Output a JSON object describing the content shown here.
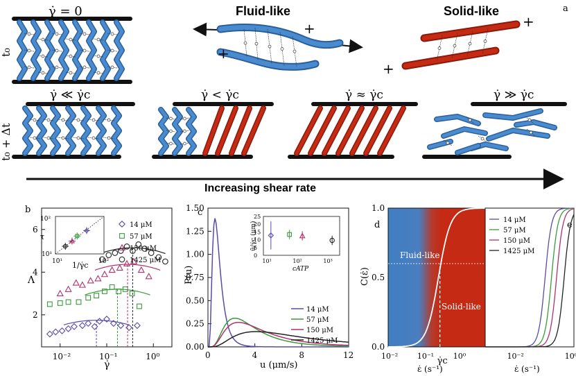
{
  "figure": {
    "label_a": "a",
    "top": {
      "row1_eq": "γ̇ = 0",
      "fluid_title": "Fluid-like",
      "solid_title": "Solid-like",
      "plus": "+",
      "t0": "t₀",
      "t0dt": "t₀ + Δt",
      "conds": [
        "γ̇ ≪ γ̇c",
        "γ̇ < γ̇c",
        "γ̇ ≈ γ̇c",
        "γ̇ ≫ γ̇c"
      ],
      "arrow_label": "Increasing shear rate"
    },
    "colors": {
      "blue": "#3f7fc0",
      "red": "#c42a14",
      "purple": "#5a4aa8",
      "green": "#3a9a3a",
      "magenta": "#b2306e",
      "black": "#222222"
    }
  },
  "chart_data": [
    {
      "id": "b",
      "type": "scatter",
      "panel_label": "b",
      "xlabel": "γ̇",
      "ylabel": "Λ",
      "xscale": "log",
      "xlim": [
        0.004,
        2.5
      ],
      "ylim": [
        0.5,
        7
      ],
      "xticks": [
        "10⁻²",
        "10⁻¹",
        "10⁰"
      ],
      "yticks": [
        "2",
        "4",
        "6"
      ],
      "series": [
        {
          "name": "14 μM",
          "marker": "diamond",
          "color": "#5a4aa8",
          "x": [
            0.006,
            0.008,
            0.011,
            0.015,
            0.02,
            0.03,
            0.04,
            0.055,
            0.07,
            0.1,
            0.14,
            0.2,
            0.3,
            0.45
          ],
          "y": [
            1.1,
            1.2,
            1.25,
            1.35,
            1.45,
            1.5,
            1.6,
            1.45,
            1.7,
            1.8,
            1.6,
            1.5,
            1.4,
            1.5
          ],
          "peak_x": 0.06
        },
        {
          "name": "57 μM",
          "marker": "square",
          "color": "#3a9a3a",
          "x": [
            0.006,
            0.01,
            0.015,
            0.025,
            0.04,
            0.06,
            0.09,
            0.13,
            0.18,
            0.25,
            0.35,
            0.5
          ],
          "y": [
            2.5,
            2.55,
            2.6,
            2.6,
            2.8,
            2.9,
            3.1,
            3.3,
            3.1,
            3.2,
            3.0,
            2.4
          ],
          "peak_x": 0.17
        },
        {
          "name": "150 μM",
          "marker": "triangle",
          "color": "#b2306e",
          "x": [
            0.01,
            0.015,
            0.022,
            0.03,
            0.045,
            0.065,
            0.09,
            0.13,
            0.19,
            0.27,
            0.38,
            0.55,
            0.8
          ],
          "y": [
            3.0,
            3.2,
            3.5,
            3.4,
            3.6,
            3.7,
            3.9,
            4.1,
            4.2,
            4.4,
            4.5,
            4.1,
            3.8
          ],
          "peak_x": 0.28
        },
        {
          "name": "1425 μM",
          "marker": "circle",
          "color": "#222222",
          "x": [
            0.08,
            0.11,
            0.15,
            0.2,
            0.27,
            0.36,
            0.48,
            0.65,
            0.9,
            1.3,
            1.8
          ],
          "y": [
            4.6,
            4.8,
            4.9,
            5.0,
            5.2,
            5.0,
            5.3,
            5.1,
            4.9,
            4.7,
            4.5
          ],
          "peak_x": 0.36
        }
      ],
      "inset": {
        "xlabel": "1/γ̇c",
        "ylabel": "τ",
        "xticks": [
          "10¹",
          "10²"
        ],
        "yticks": [
          "10¹",
          "10²"
        ],
        "points": [
          {
            "x": 16,
            "y": 16,
            "color": "#222222"
          },
          {
            "x": 22,
            "y": 22,
            "color": "#b2306e"
          },
          {
            "x": 28,
            "y": 30,
            "color": "#3a9a3a"
          },
          {
            "x": 44,
            "y": 42,
            "color": "#5a4aa8"
          }
        ]
      }
    },
    {
      "id": "c",
      "type": "line",
      "panel_label": "c",
      "xlabel": "u (μm/s)",
      "ylabel": "P(u)",
      "xlim": [
        0,
        12
      ],
      "ylim": [
        0,
        1.5
      ],
      "xticks": [
        "0",
        "4",
        "8",
        "12"
      ],
      "yticks": [
        "0.00",
        "0.25",
        "0.50",
        "0.75",
        "1.00",
        "1.25",
        "1.50"
      ],
      "series": [
        {
          "name": "14 μM",
          "color": "#5a4aa8",
          "peak_u": 0.6,
          "peak_p": 1.39,
          "width": 0.55
        },
        {
          "name": "57 μM",
          "color": "#3a9a3a",
          "peak_u": 2.3,
          "peak_p": 0.31,
          "width": 1.6
        },
        {
          "name": "150 μM",
          "color": "#b2306e",
          "peak_u": 2.6,
          "peak_p": 0.265,
          "width": 1.9
        },
        {
          "name": "1425 μM",
          "color": "#222222",
          "peak_u": 4.1,
          "peak_p": 0.165,
          "width": 3.0
        }
      ],
      "inset": {
        "xlabel": "cATP",
        "ylabel": "ū/γ̇c (μm)",
        "xticks": [
          "10¹",
          "10²",
          "10³"
        ],
        "yticks": [
          "0",
          "5",
          "10",
          "15",
          "20",
          "25"
        ],
        "points": [
          {
            "x": 14,
            "y": 12.8,
            "err": 9,
            "color": "#5a4aa8",
            "marker": "diamond"
          },
          {
            "x": 57,
            "y": 13.4,
            "err": 3,
            "color": "#3a9a3a",
            "marker": "square"
          },
          {
            "x": 150,
            "y": 12.5,
            "err": 3,
            "color": "#b2306e",
            "marker": "triangle"
          },
          {
            "x": 1425,
            "y": 9.6,
            "err": 3,
            "color": "#222222",
            "marker": "circle"
          }
        ]
      }
    },
    {
      "id": "d",
      "type": "line",
      "panel_label": "d",
      "xlabel": "ε̇ (s⁻¹)",
      "ylabel": "C(ε̇)",
      "xlim": [
        0.01,
        5
      ],
      "ylim": [
        0,
        1
      ],
      "xticks": [
        "10⁻²",
        "10⁻¹",
        "10⁰"
      ],
      "yticks": [
        "0.0",
        "0.5",
        "1.0"
      ],
      "region_fluid": "Fluid-like",
      "region_solid": "Solid-like",
      "gamma_c_label": "γ̇c",
      "curve_mid": 0.25,
      "threshold": 0.6
    },
    {
      "id": "e",
      "type": "line",
      "panel_label": "e",
      "xlabel": "ε̇ (s⁻¹)",
      "xlim": [
        0.001,
        1.2
      ],
      "xticks": [
        "10⁻²",
        "10⁰"
      ],
      "series": [
        {
          "name": "14 μM",
          "color": "#5a4aa8",
          "mid": 0.12
        },
        {
          "name": "57 μM",
          "color": "#3a9a3a",
          "mid": 0.2
        },
        {
          "name": "150 μM",
          "color": "#b2306e",
          "mid": 0.3
        },
        {
          "name": "1425 μM",
          "color": "#222222",
          "mid": 0.55
        }
      ]
    }
  ]
}
